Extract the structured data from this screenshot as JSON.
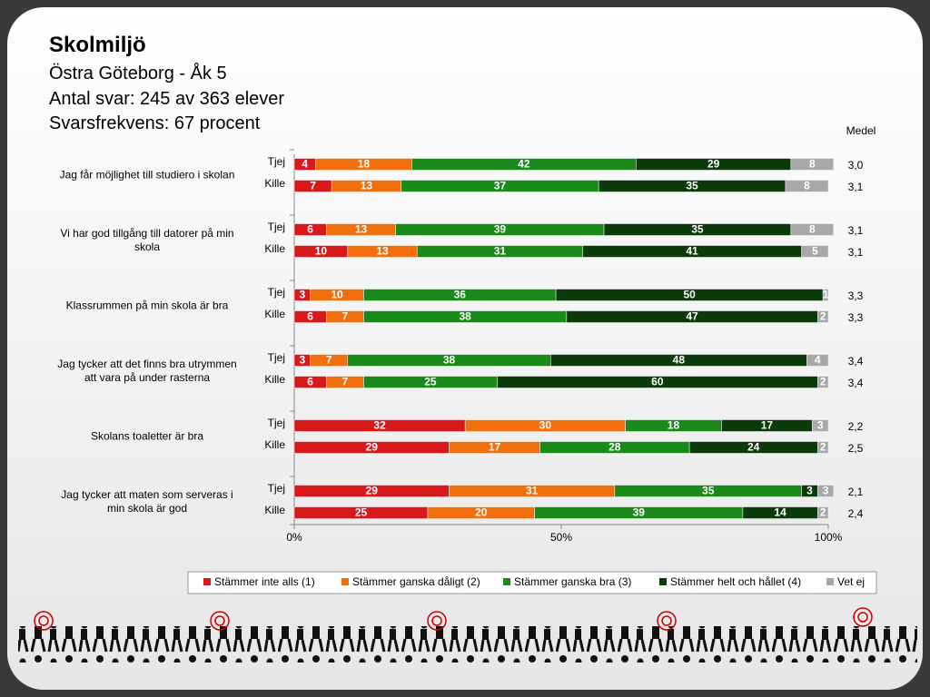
{
  "chart_data": {
    "type": "bar",
    "orientation": "horizontal",
    "stacked": true,
    "title": "Skolmiljö",
    "subtitle": [
      "Östra Göteborg - Åk 5",
      "Antal svar: 245 av 363 elever",
      "Svarsfrekvens: 67 procent"
    ],
    "groups": [
      "Jag får möjlighet  till studiero  i skolan",
      "Vi har god tillgång till datorer på min skola",
      "Klassrummen på min skola är bra",
      "Jag tycker att det finns bra utrymmen att vara på under rasterna",
      "Skolans toaletter är bra",
      "Jag tycker att maten som serveras  i min skola är god"
    ],
    "categories": [
      "Tjej",
      "Kille",
      "Tjej",
      "Kille",
      "Tjej",
      "Kille",
      "Tjej",
      "Kille",
      "Tjej",
      "Kille",
      "Tjej",
      "Kille"
    ],
    "series": [
      {
        "name": "Stämmer inte alls (1)",
        "color": "#d7191c",
        "values": [
          4,
          7,
          6,
          10,
          3,
          6,
          3,
          6,
          32,
          29,
          29,
          25
        ]
      },
      {
        "name": "Stämmer ganska dåligt (2)",
        "color": "#f0700f",
        "values": [
          18,
          13,
          13,
          13,
          10,
          7,
          7,
          7,
          30,
          17,
          31,
          20
        ]
      },
      {
        "name": "Stämmer ganska bra (3)",
        "color": "#1b8a1b",
        "values": [
          42,
          37,
          39,
          31,
          36,
          38,
          38,
          25,
          18,
          28,
          35,
          39
        ]
      },
      {
        "name": "Stämmer helt och hållet (4)",
        "color": "#0b3a0b",
        "values": [
          29,
          35,
          35,
          41,
          50,
          47,
          48,
          60,
          17,
          24,
          3,
          14
        ]
      },
      {
        "name": "Vet ej",
        "color": "#a8a8a8",
        "values": [
          8,
          8,
          8,
          5,
          1,
          2,
          4,
          2,
          3,
          2,
          3,
          2
        ]
      }
    ],
    "medel_label": "Medel",
    "medel": [
      "3,0",
      "3,1",
      "3,1",
      "3,1",
      "3,3",
      "3,3",
      "3,4",
      "3,4",
      "2,2",
      "2,5",
      "2,1",
      "2,4"
    ],
    "xlim": [
      0,
      100
    ],
    "xticks": [
      {
        "value": 0,
        "label": "0%"
      },
      {
        "value": 50,
        "label": "50%"
      },
      {
        "value": 100,
        "label": "100%"
      }
    ],
    "legend": "bottom"
  }
}
